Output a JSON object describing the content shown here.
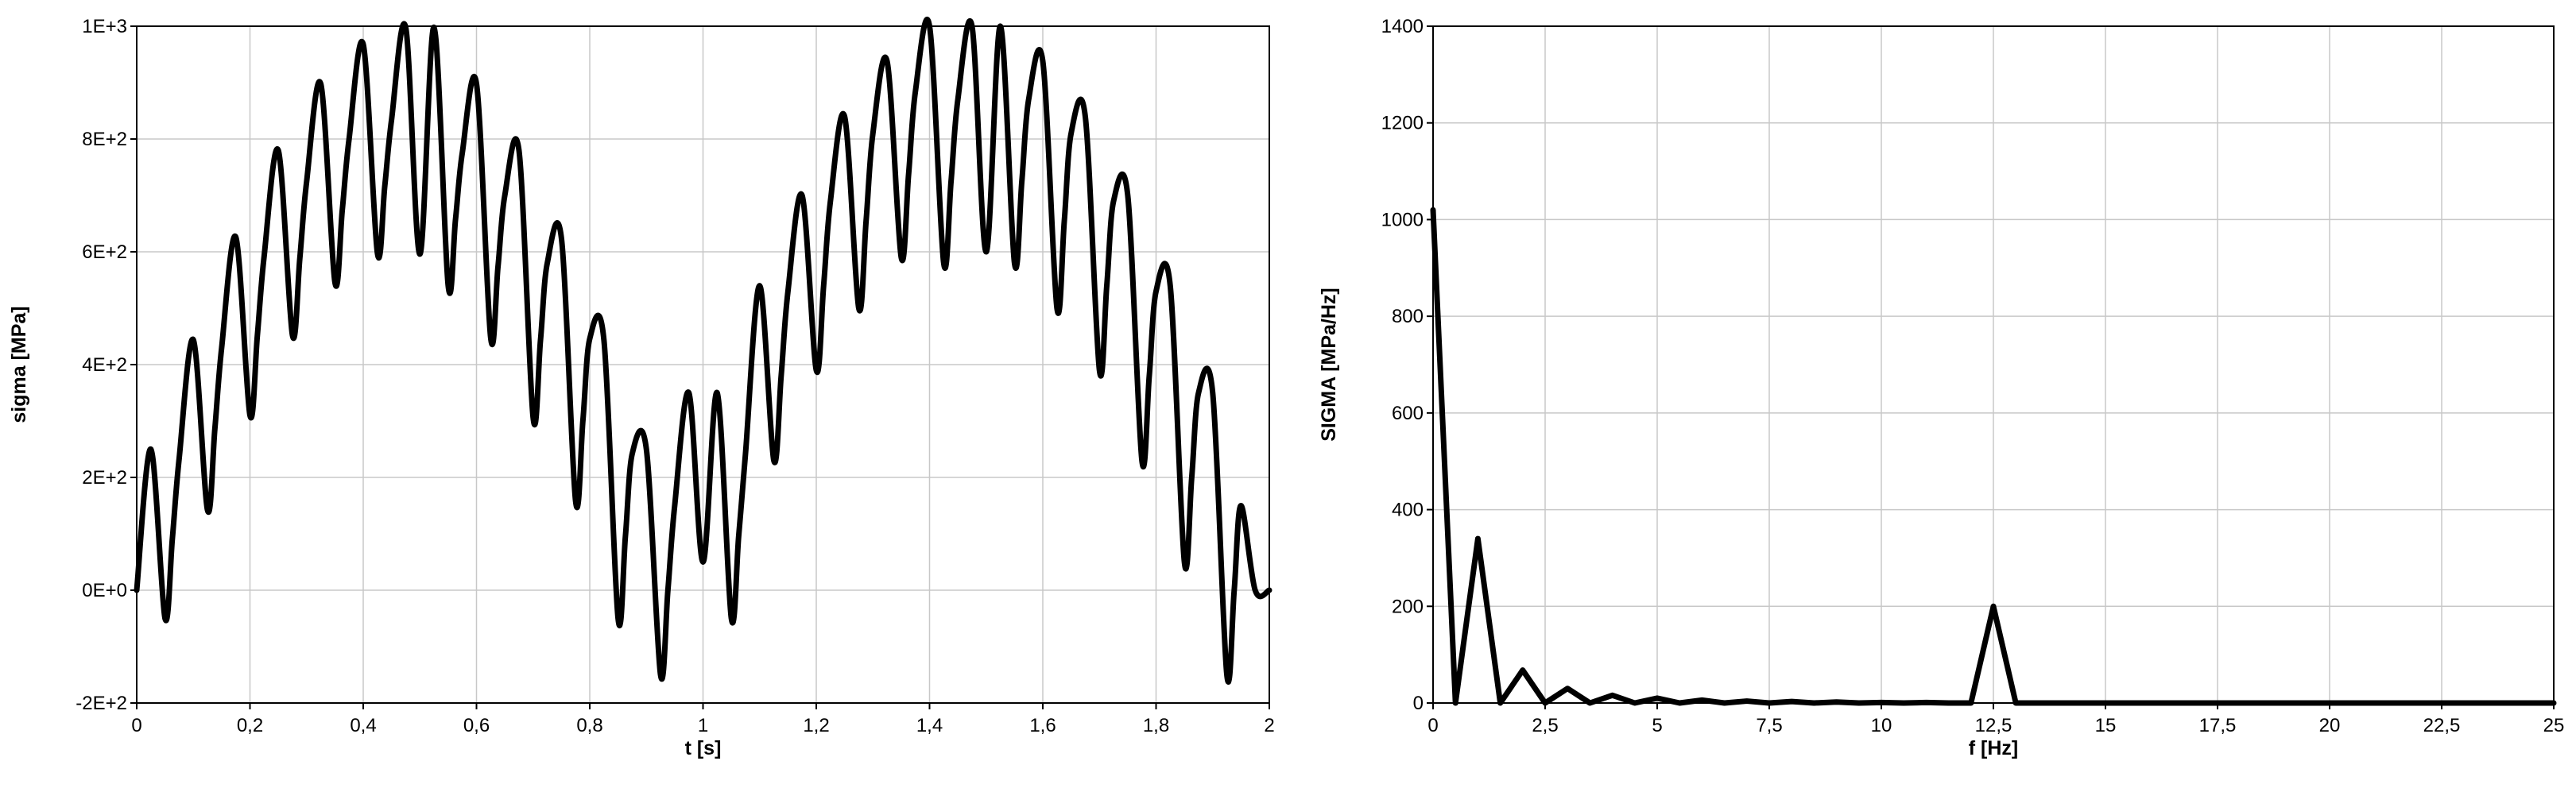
{
  "chart_data": [
    {
      "type": "line",
      "xlabel": "t [s]",
      "ylabel": "sigma [MPa]",
      "xlim": [
        0,
        2
      ],
      "ylim": [
        -200,
        1000
      ],
      "grid": true,
      "xticks": [
        0,
        0.2,
        0.4,
        0.6,
        0.8,
        1,
        1.2,
        1.4,
        1.6,
        1.8,
        2
      ],
      "xtick_labels": [
        "0",
        "0,2",
        "0,4",
        "0,6",
        "0,8",
        "1",
        "1,2",
        "1,4",
        "1,6",
        "1,8",
        "2"
      ],
      "yticks": [
        -200,
        0,
        200,
        400,
        600,
        800,
        1000
      ],
      "ytick_labels": [
        "-2E+2",
        "0E+0",
        "2E+2",
        "4E+2",
        "6E+2",
        "8E+2",
        "1E+3"
      ],
      "series": [
        {
          "x": [
            0.0,
            0.025,
            0.05,
            0.063,
            0.075,
            0.1,
            0.125,
            0.138,
            0.15,
            0.175,
            0.2,
            0.213,
            0.225,
            0.25,
            0.275,
            0.288,
            0.3,
            0.325,
            0.35,
            0.363,
            0.375,
            0.4,
            0.425,
            0.438,
            0.45,
            0.475,
            0.5,
            0.525,
            0.55,
            0.563,
            0.575,
            0.6,
            0.625,
            0.638,
            0.65,
            0.675,
            0.7,
            0.713,
            0.725,
            0.75,
            0.775,
            0.788,
            0.8,
            0.825,
            0.85,
            0.863,
            0.875,
            0.9,
            0.925,
            0.938,
            0.95,
            0.975,
            1.0,
            1.025,
            1.05,
            1.063,
            1.075,
            1.1,
            1.125,
            1.138,
            1.15,
            1.175,
            1.2,
            1.213,
            1.225,
            1.25,
            1.275,
            1.288,
            1.3,
            1.325,
            1.35,
            1.363,
            1.375,
            1.4,
            1.425,
            1.438,
            1.45,
            1.475,
            1.5,
            1.525,
            1.55,
            1.563,
            1.575,
            1.6,
            1.625,
            1.638,
            1.65,
            1.675,
            1.7,
            1.713,
            1.725,
            1.75,
            1.775,
            1.788,
            1.8,
            1.825,
            1.85,
            1.863,
            1.875,
            1.9,
            1.925,
            1.938,
            1.95,
            1.975,
            2.0
          ],
          "y": [
            0,
            250,
            -50,
            92,
            234,
            444,
            142,
            286,
            430,
            626,
            310,
            451,
            592,
            780,
            452,
            588,
            724,
            898,
            546,
            674,
            800,
            968,
            598,
            716,
            834,
            998,
            596,
            998,
            540,
            658,
            776,
            898,
            448,
            574,
            700,
            780,
            306,
            443,
            580,
            624,
            158,
            302,
            446,
            444,
            -50,
            96,
            242,
            250,
            -150,
            0,
            150,
            350,
            50,
            350,
            -50,
            96,
            242,
            540,
            230,
            380,
            530,
            700,
            390,
            540,
            690,
            840,
            500,
            655,
            810,
            938,
            590,
            737,
            884,
            1000,
            580,
            725,
            870,
            1000,
            600,
            1000,
            580,
            725,
            870,
            938,
            500,
            655,
            810,
            840,
            390,
            540,
            690,
            700,
            230,
            380,
            530,
            540,
            50,
            200,
            350,
            350,
            -150,
            0,
            150,
            0,
            0
          ]
        }
      ]
    },
    {
      "type": "line",
      "xlabel": "f [Hz]",
      "ylabel": "SIGMA [MPa/Hz]",
      "xlim": [
        0,
        25
      ],
      "ylim": [
        0,
        1400
      ],
      "grid": true,
      "xticks": [
        0,
        2.5,
        5,
        7.5,
        10,
        12.5,
        15,
        17.5,
        20,
        22.5,
        25
      ],
      "xtick_labels": [
        "0",
        "2,5",
        "5",
        "7,5",
        "10",
        "12,5",
        "15",
        "17,5",
        "20",
        "22,5",
        "25"
      ],
      "yticks": [
        0,
        200,
        400,
        600,
        800,
        1000,
        1200,
        1400
      ],
      "ytick_labels": [
        "0",
        "200",
        "400",
        "600",
        "800",
        "1000",
        "1200",
        "1400"
      ],
      "series": [
        {
          "x": [
            0,
            0.5,
            1,
            1.5,
            2,
            2.5,
            3,
            3.5,
            4,
            4.5,
            5,
            5.5,
            6,
            6.5,
            7,
            7.5,
            8,
            8.5,
            9,
            9.5,
            10,
            10.5,
            11,
            11.5,
            12,
            12.5,
            13,
            13.5,
            14,
            25
          ],
          "y": [
            1020,
            0,
            340,
            0,
            68,
            0,
            30,
            0,
            16,
            0,
            10,
            0,
            6,
            0,
            4,
            0,
            3,
            0,
            2,
            0,
            1,
            0,
            1,
            0,
            0,
            200,
            0,
            0,
            0,
            0
          ]
        }
      ]
    }
  ]
}
